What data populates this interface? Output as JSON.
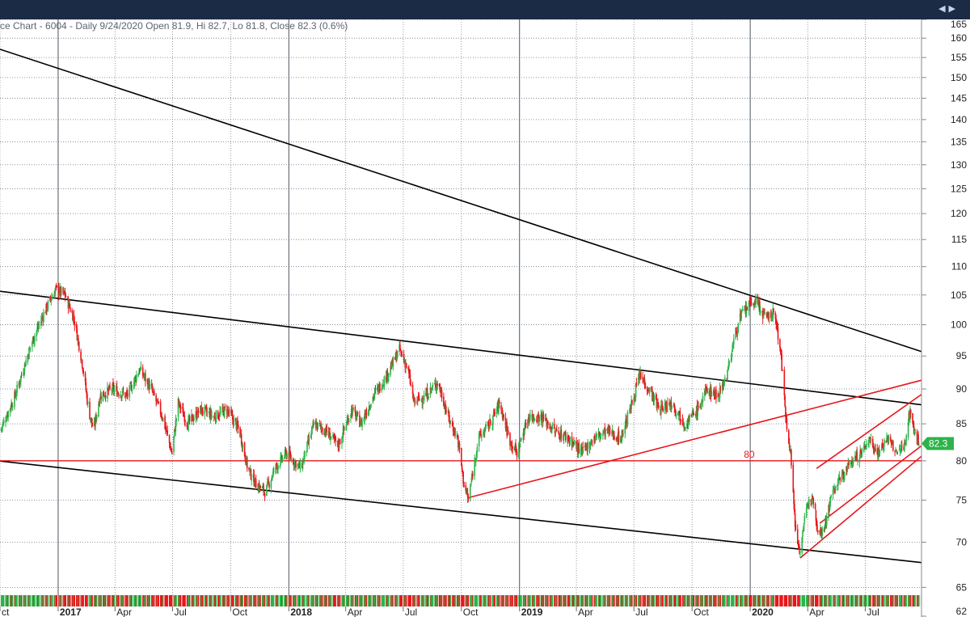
{
  "chart_data": {
    "type": "candlestick",
    "header": "ce Chart - 6004 - Daily 9/24/2020 Open 81.9, Hi 82.7, Lo 81.8, Close 82.3 (0.6%)",
    "ohlc": {
      "date": "9/24/2020",
      "open": 81.9,
      "high": 82.7,
      "low": 81.8,
      "close": 82.3,
      "change_pct": "0.6%"
    },
    "ylim": [
      62,
      165
    ],
    "y_ticks": [
      62,
      65,
      70,
      75,
      80,
      85,
      90,
      95,
      100,
      105,
      110,
      115,
      120,
      125,
      130,
      135,
      140,
      145,
      150,
      155,
      160,
      165
    ],
    "x_start": "2016-10-01",
    "x_end": "2020-09-28",
    "x_ticks": [
      {
        "label": "ct",
        "date": "2016-10-01",
        "major": false
      },
      {
        "label": "2017",
        "date": "2017-01-01",
        "major": true
      },
      {
        "label": "Apr",
        "date": "2017-04-01",
        "major": false
      },
      {
        "label": "Jul",
        "date": "2017-07-01",
        "major": false
      },
      {
        "label": "Oct",
        "date": "2017-10-01",
        "major": false
      },
      {
        "label": "2018",
        "date": "2018-01-01",
        "major": true
      },
      {
        "label": "Apr",
        "date": "2018-04-01",
        "major": false
      },
      {
        "label": "Jul",
        "date": "2018-07-01",
        "major": false
      },
      {
        "label": "Oct",
        "date": "2018-10-01",
        "major": false
      },
      {
        "label": "2019",
        "date": "2019-01-01",
        "major": true
      },
      {
        "label": "Apr",
        "date": "2019-04-01",
        "major": false
      },
      {
        "label": "Jul",
        "date": "2019-07-01",
        "major": false
      },
      {
        "label": "Oct",
        "date": "2019-10-01",
        "major": false
      },
      {
        "label": "2020",
        "date": "2020-01-01",
        "major": true
      },
      {
        "label": "Apr",
        "date": "2020-04-01",
        "major": false
      },
      {
        "label": "Jul",
        "date": "2020-07-01",
        "major": false
      }
    ],
    "price_path": [
      [
        "2016-10-01",
        84
      ],
      [
        "2016-10-25",
        89
      ],
      [
        "2016-11-20",
        97
      ],
      [
        "2016-12-10",
        102
      ],
      [
        "2016-12-28",
        106
      ],
      [
        "2017-01-12",
        105
      ],
      [
        "2017-01-26",
        101
      ],
      [
        "2017-02-08",
        94
      ],
      [
        "2017-02-18",
        87
      ],
      [
        "2017-02-26",
        84
      ],
      [
        "2017-03-08",
        89
      ],
      [
        "2017-03-28",
        90
      ],
      [
        "2017-04-20",
        89
      ],
      [
        "2017-05-10",
        93
      ],
      [
        "2017-05-28",
        90
      ],
      [
        "2017-06-15",
        86
      ],
      [
        "2017-06-30",
        81
      ],
      [
        "2017-07-10",
        88
      ],
      [
        "2017-07-25",
        85
      ],
      [
        "2017-08-15",
        87
      ],
      [
        "2017-09-05",
        86
      ],
      [
        "2017-09-25",
        87
      ],
      [
        "2017-10-15",
        84
      ],
      [
        "2017-10-28",
        79
      ],
      [
        "2017-11-10",
        77
      ],
      [
        "2017-11-25",
        76
      ],
      [
        "2017-12-10",
        79
      ],
      [
        "2017-12-28",
        81
      ],
      [
        "2018-01-20",
        79
      ],
      [
        "2018-02-10",
        85
      ],
      [
        "2018-03-01",
        84
      ],
      [
        "2018-03-20",
        82
      ],
      [
        "2018-04-10",
        87
      ],
      [
        "2018-04-25",
        85
      ],
      [
        "2018-05-15",
        89
      ],
      [
        "2018-06-05",
        92
      ],
      [
        "2018-06-25",
        96
      ],
      [
        "2018-07-08",
        93
      ],
      [
        "2018-07-18",
        88
      ],
      [
        "2018-08-05",
        89
      ],
      [
        "2018-08-25",
        91
      ],
      [
        "2018-09-10",
        86
      ],
      [
        "2018-09-25",
        83
      ],
      [
        "2018-10-05",
        77
      ],
      [
        "2018-10-12",
        75
      ],
      [
        "2018-10-28",
        83
      ],
      [
        "2018-11-15",
        85
      ],
      [
        "2018-12-01",
        88
      ],
      [
        "2018-12-15",
        83
      ],
      [
        "2018-12-28",
        81
      ],
      [
        "2019-01-15",
        86
      ],
      [
        "2019-02-05",
        86
      ],
      [
        "2019-02-25",
        84
      ],
      [
        "2019-03-20",
        83
      ],
      [
        "2019-04-10",
        81
      ],
      [
        "2019-04-28",
        83
      ],
      [
        "2019-05-20",
        84
      ],
      [
        "2019-06-10",
        83
      ],
      [
        "2019-06-25",
        87
      ],
      [
        "2019-07-10",
        92
      ],
      [
        "2019-07-25",
        90
      ],
      [
        "2019-08-10",
        87
      ],
      [
        "2019-08-30",
        88
      ],
      [
        "2019-09-20",
        85
      ],
      [
        "2019-10-10",
        87
      ],
      [
        "2019-10-25",
        90
      ],
      [
        "2019-11-10",
        89
      ],
      [
        "2019-11-25",
        92
      ],
      [
        "2019-12-05",
        97
      ],
      [
        "2019-12-15",
        101
      ],
      [
        "2019-12-28",
        103
      ],
      [
        "2020-01-10",
        104
      ],
      [
        "2020-01-25",
        101
      ],
      [
        "2020-02-08",
        102
      ],
      [
        "2020-02-18",
        96
      ],
      [
        "2020-02-25",
        87
      ],
      [
        "2020-03-05",
        81
      ],
      [
        "2020-03-12",
        72
      ],
      [
        "2020-03-19",
        69
      ],
      [
        "2020-03-28",
        73
      ],
      [
        "2020-04-08",
        76
      ],
      [
        "2020-04-18",
        71
      ],
      [
        "2020-04-28",
        72
      ],
      [
        "2020-05-10",
        76
      ],
      [
        "2020-05-25",
        78
      ],
      [
        "2020-06-10",
        80
      ],
      [
        "2020-06-25",
        81
      ],
      [
        "2020-07-08",
        83
      ],
      [
        "2020-07-20",
        81
      ],
      [
        "2020-08-05",
        83
      ],
      [
        "2020-08-20",
        81
      ],
      [
        "2020-09-01",
        82
      ],
      [
        "2020-09-10",
        87
      ],
      [
        "2020-09-16",
        84
      ],
      [
        "2020-09-24",
        82.3
      ]
    ],
    "trendlines": [
      {
        "name": "resistance-upper",
        "color": "#000000",
        "from": [
          "2016-09-05",
          158.5
        ],
        "to": [
          "2020-09-28",
          95.7
        ]
      },
      {
        "name": "resistance-mid",
        "color": "#000000",
        "from": [
          "2016-09-05",
          106.0
        ],
        "to": [
          "2020-09-28",
          87.7
        ]
      },
      {
        "name": "support-lower",
        "color": "#000000",
        "from": [
          "2016-09-05",
          80.2
        ],
        "to": [
          "2020-09-28",
          67.7
        ]
      },
      {
        "name": "support-rising",
        "color": "#e8161b",
        "from": [
          "2018-10-12",
          75.3
        ],
        "to": [
          "2020-09-28",
          91.3
        ]
      },
      {
        "name": "channel-top",
        "color": "#e8161b",
        "from": [
          "2020-04-15",
          79.0
        ],
        "to": [
          "2020-09-28",
          89.2
        ]
      },
      {
        "name": "channel-bottom",
        "color": "#e8161b",
        "from": [
          "2020-03-20",
          68.2
        ],
        "to": [
          "2020-09-28",
          80.6
        ]
      },
      {
        "name": "channel-inner",
        "color": "#e8161b",
        "from": [
          "2020-04-20",
          72.2
        ],
        "to": [
          "2020-09-28",
          82.0
        ]
      }
    ],
    "hlines": [
      {
        "name": "level-80",
        "value": 80,
        "label": "80",
        "color": "#e8161b"
      }
    ],
    "last_price": {
      "value": 82.3,
      "label": "82.3",
      "color": "#2db34a"
    },
    "volume_colors": {
      "up": "#2db34a",
      "down": "#e8161b"
    }
  }
}
